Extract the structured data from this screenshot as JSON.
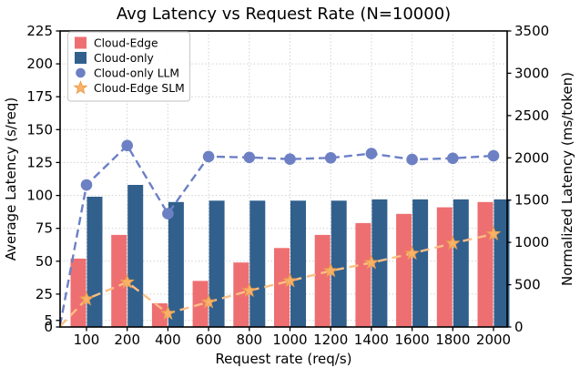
{
  "chart_data": {
    "type": "bar",
    "title": "Avg Latency vs Request Rate (N=10000)",
    "xlabel": "Request rate (req/s)",
    "ylabel_left": "Average Latency (s/req)",
    "ylabel_right": "Normalized Latency (ms/token)",
    "categories": [
      "100",
      "200",
      "400",
      "600",
      "800",
      "1000",
      "1200",
      "1400",
      "1600",
      "1800",
      "2000"
    ],
    "left_axis": {
      "ticks": [
        0,
        5,
        25,
        50,
        75,
        100,
        125,
        150,
        175,
        200,
        225
      ],
      "range": [
        0,
        225
      ]
    },
    "right_axis": {
      "ticks": [
        0,
        500,
        1000,
        1500,
        2000,
        2500,
        3000,
        3500
      ],
      "range": [
        0,
        3500
      ]
    },
    "grid": true,
    "legend_position": "upper left",
    "series": [
      {
        "name": "Cloud-Edge",
        "type": "bar",
        "axis": "left",
        "color": "#ee6f71",
        "values": [
          52,
          70,
          18,
          35,
          49,
          60,
          70,
          79,
          86,
          91,
          95
        ]
      },
      {
        "name": "Cloud-only",
        "type": "bar",
        "axis": "left",
        "color": "#31608d",
        "values": [
          99,
          108,
          95,
          96,
          96,
          96,
          96,
          97,
          97,
          97,
          97
        ]
      },
      {
        "name": "Cloud-only LLM",
        "type": "line",
        "axis": "right",
        "marker": "circle",
        "color": "#6d80c4",
        "line_color": "#6c80c6",
        "values": [
          1680,
          2145,
          1340,
          2015,
          2005,
          1985,
          2000,
          2050,
          1980,
          1995,
          2025
        ],
        "edge_start_value": 20
      },
      {
        "name": "Cloud-Edge SLM",
        "type": "line",
        "axis": "right",
        "marker": "star",
        "color": "#f9b268",
        "line_color": "#fcbf85",
        "marker_edge_color": "#ec9f4e",
        "values": [
          330,
          530,
          160,
          295,
          430,
          545,
          665,
          760,
          870,
          990,
          1100
        ],
        "edge_start_value": 10
      }
    ],
    "colors": {
      "grid": "#c7c7c7",
      "spine": "#000000",
      "legend_border": "#cccccc"
    }
  }
}
